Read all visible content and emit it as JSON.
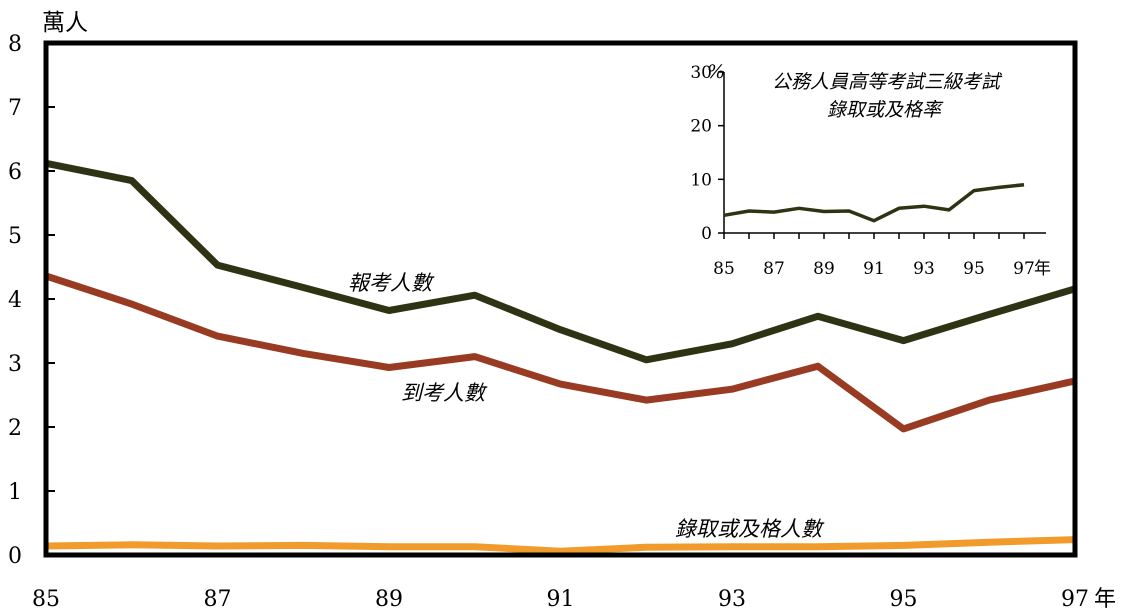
{
  "chart_data": [
    {
      "type": "line",
      "ylabel": "萬人",
      "xlabel_suffix": "年",
      "x": [
        85,
        86,
        87,
        88,
        89,
        90,
        91,
        92,
        93,
        94,
        95,
        96,
        97
      ],
      "x_tick_labels": [
        "85",
        "87",
        "89",
        "91",
        "93",
        "95",
        "97"
      ],
      "ylim": [
        0,
        8
      ],
      "y_ticks": [
        "0",
        "1",
        "2",
        "3",
        "4",
        "5",
        "6",
        "7",
        "8"
      ],
      "grid": false,
      "series": [
        {
          "name": "報考人數",
          "color": "#2f3314",
          "values": [
            6.12,
            5.85,
            4.53,
            4.18,
            3.82,
            4.06,
            3.52,
            3.05,
            3.3,
            3.73,
            3.35,
            3.76,
            4.16
          ]
        },
        {
          "name": "到考人數",
          "color": "#983b22",
          "values": [
            4.36,
            3.92,
            3.42,
            3.15,
            2.93,
            3.1,
            2.67,
            2.42,
            2.59,
            2.95,
            1.97,
            2.42,
            2.72
          ]
        },
        {
          "name": "錄取或及格人數",
          "color": "#f19b2c",
          "values": [
            0.14,
            0.16,
            0.14,
            0.15,
            0.13,
            0.13,
            0.06,
            0.12,
            0.13,
            0.13,
            0.15,
            0.2,
            0.24
          ]
        }
      ]
    },
    {
      "type": "line",
      "title": [
        "公務人員高等考試三級考試",
        "錄取或及格率"
      ],
      "y_unit": "%",
      "xlabel_suffix": "年",
      "x": [
        85,
        86,
        87,
        88,
        89,
        90,
        91,
        92,
        93,
        94,
        95,
        96,
        97
      ],
      "x_tick_labels": [
        "85",
        "87",
        "89",
        "91",
        "93",
        "95",
        "97"
      ],
      "ylim": [
        0,
        30
      ],
      "y_ticks": [
        "0",
        "10",
        "20",
        "30"
      ],
      "grid": false,
      "series": [
        {
          "color": "#2f3314",
          "values": [
            3.3,
            4.1,
            3.9,
            4.6,
            4.0,
            4.1,
            2.3,
            4.6,
            5.0,
            4.3,
            7.9,
            8.5,
            9.0
          ]
        }
      ]
    }
  ]
}
